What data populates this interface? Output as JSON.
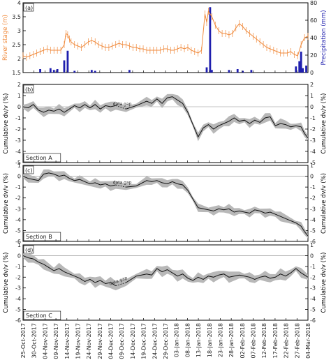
{
  "chart_data": [
    {
      "type": "line",
      "panel_label": "(a)",
      "ylabel_left": "River stage (m)",
      "ylabel_right": "Precipitation (mm)",
      "ylim_left": [
        1.5,
        4.0
      ],
      "ylim_right": [
        0,
        80
      ],
      "yticks_left": [
        "1.5",
        "2",
        "2.5",
        "3",
        "3.5",
        "4"
      ],
      "yticks_right": [
        "0",
        "20",
        "40",
        "60",
        "80"
      ],
      "colors": {
        "river_stage": "#f08a3c",
        "precipitation": "#1f1fae"
      },
      "series": [
        {
          "name": "River stage",
          "axis": "left",
          "kind": "line_errorbar",
          "x": [
            0,
            2,
            4,
            6,
            8,
            10,
            12,
            14,
            16,
            18,
            20,
            22,
            24,
            25,
            26,
            27,
            28,
            30,
            32,
            34,
            36,
            38,
            40,
            42,
            44,
            46,
            48,
            50,
            52,
            54,
            56,
            58,
            60,
            62,
            64,
            66,
            68,
            70,
            72,
            74,
            76,
            78,
            80,
            82,
            84,
            86,
            88,
            90,
            92,
            94,
            96,
            98,
            100,
            102,
            104,
            106,
            107,
            108,
            110,
            112,
            114,
            116,
            118,
            120,
            122,
            124,
            126,
            128,
            130,
            132,
            134,
            136,
            138,
            140,
            142,
            144,
            146,
            148,
            150,
            152,
            154,
            156,
            158,
            160,
            162,
            164,
            166
          ],
          "values": [
            2.1,
            2.05,
            2.1,
            2.15,
            2.2,
            2.25,
            2.3,
            2.35,
            2.3,
            2.3,
            2.3,
            2.3,
            2.5,
            2.9,
            2.85,
            2.7,
            2.6,
            2.5,
            2.45,
            2.4,
            2.5,
            2.6,
            2.65,
            2.6,
            2.5,
            2.45,
            2.4,
            2.4,
            2.45,
            2.5,
            2.55,
            2.5,
            2.5,
            2.45,
            2.4,
            2.4,
            2.35,
            2.35,
            2.3,
            2.3,
            2.3,
            2.3,
            2.3,
            2.35,
            2.35,
            2.3,
            2.3,
            2.35,
            2.4,
            2.35,
            2.4,
            2.3,
            2.25,
            2.2,
            2.3,
            3.6,
            3.3,
            3.7,
            3.5,
            3.2,
            3.0,
            2.9,
            2.9,
            2.85,
            2.9,
            3.1,
            3.25,
            3.15,
            3.0,
            2.9,
            2.8,
            2.7,
            2.6,
            2.5,
            2.4,
            2.35,
            2.3,
            2.25,
            2.2,
            2.2,
            2.2,
            2.25,
            2.15,
            2.1,
            2.5,
            2.75,
            2.8
          ]
        },
        {
          "name": "Precipitation",
          "axis": "right",
          "kind": "bar",
          "x": [
            10,
            16,
            18,
            20,
            24,
            26,
            30,
            40,
            42,
            62,
            107,
            109,
            110,
            120,
            125,
            128,
            133,
            159,
            161,
            162,
            163,
            165
          ],
          "values": [
            4,
            5,
            3,
            4,
            14,
            25,
            2,
            3,
            2,
            3,
            6,
            75,
            3,
            3,
            4,
            2,
            3,
            7,
            13,
            24,
            5,
            8
          ]
        }
      ]
    },
    {
      "type": "area",
      "panel_label": "(b)",
      "section_label": "Section A",
      "ylabel_left": "Cumulative dv/v (%)",
      "ylabel_right": "Cumulative dv/v (%)",
      "ylim": [
        -5,
        2
      ],
      "yticks": [
        "2",
        "1",
        "0",
        "-1",
        "-2",
        "-3",
        "-4",
        "-5"
      ],
      "annotation": "data gap",
      "series": [
        {
          "name": "dv/v",
          "kind": "line_with_band",
          "x": [
            0,
            3,
            6,
            9,
            12,
            15,
            18,
            21,
            24,
            27,
            30,
            33,
            36,
            39,
            42,
            45,
            48,
            51,
            54,
            60,
            66,
            72,
            75,
            78,
            81,
            84,
            87,
            90,
            93,
            96,
            99,
            102,
            105,
            108,
            111,
            114,
            117,
            120,
            123,
            126,
            129,
            132,
            135,
            138,
            141,
            144,
            147,
            150,
            153,
            156,
            159,
            162,
            164,
            166
          ],
          "values": [
            0,
            -0.1,
            0.2,
            -0.3,
            -0.5,
            -0.3,
            -0.4,
            -0.2,
            -0.5,
            -0.2,
            0.1,
            -0.1,
            0.2,
            -0.1,
            0.2,
            -0.2,
            0.1,
            0.0,
            0.1,
            -0.2,
            0.1,
            0.5,
            0.3,
            0.7,
            0.3,
            0.8,
            0.9,
            0.6,
            0.3,
            -0.5,
            -1.6,
            -2.7,
            -1.9,
            -1.6,
            -2.0,
            -1.7,
            -1.5,
            -1.3,
            -1.0,
            -1.3,
            -1.2,
            -1.5,
            -1.2,
            -1.4,
            -1.0,
            -0.9,
            -1.7,
            -1.5,
            -1.6,
            -1.8,
            -1.7,
            -1.8,
            -2.4,
            -2.8
          ],
          "band_halfwidth": 0.3
        }
      ]
    },
    {
      "type": "area",
      "panel_label": "(c)",
      "section_label": "Section B",
      "ylabel_left": "Cumulative dv/v (%)",
      "ylabel_right": "Cumulative dv/v (%)",
      "ylim": [
        -6,
        1
      ],
      "yticks": [
        "1",
        "0",
        "-1",
        "-2",
        "-3",
        "-4",
        "-5",
        "-6"
      ],
      "annotation": "data gap",
      "series": [
        {
          "name": "dv/v",
          "kind": "line_with_band",
          "x": [
            0,
            3,
            6,
            9,
            12,
            15,
            18,
            21,
            24,
            27,
            30,
            33,
            36,
            39,
            42,
            45,
            48,
            51,
            54,
            60,
            66,
            72,
            75,
            78,
            81,
            84,
            87,
            90,
            93,
            96,
            99,
            102,
            105,
            108,
            111,
            114,
            117,
            120,
            123,
            126,
            129,
            132,
            135,
            138,
            141,
            144,
            147,
            150,
            153,
            156,
            159,
            162,
            164,
            166
          ],
          "values": [
            0,
            -0.2,
            -0.3,
            -0.4,
            0.2,
            0.3,
            0.2,
            0.0,
            0.1,
            -0.2,
            -0.4,
            -0.3,
            -0.5,
            -0.7,
            -0.6,
            -0.8,
            -0.7,
            -0.9,
            -0.8,
            -1.0,
            -0.9,
            -0.4,
            -0.5,
            -0.4,
            -0.6,
            -0.7,
            -0.5,
            -0.7,
            -0.8,
            -1.3,
            -2.1,
            -2.9,
            -3.0,
            -3.1,
            -3.2,
            -3.0,
            -3.1,
            -3.0,
            -3.3,
            -3.2,
            -3.3,
            -3.4,
            -3.1,
            -3.2,
            -3.4,
            -3.3,
            -3.5,
            -3.7,
            -3.9,
            -4.1,
            -4.3,
            -4.6,
            -5.1,
            -5.5
          ],
          "band_halfwidth": 0.3
        }
      ]
    },
    {
      "type": "area",
      "panel_label": "(d)",
      "section_label": "Section C",
      "ylabel_left": "Cumulative dv/v (%)",
      "ylabel_right": "Cumulative dv/v (%)",
      "ylim": [
        -6,
        1
      ],
      "yticks": [
        "1",
        "0",
        "-1",
        "-2",
        "-3",
        "-4",
        "-5",
        "-6"
      ],
      "annotation": "data gap",
      "xticks": [
        "25-Oct-2017",
        "30-Oct-2017",
        "04-Nov-2017",
        "09-Nov-2017",
        "14-Nov-2017",
        "19-Nov-2017",
        "24-Nov-2017",
        "29-Nov-2017",
        "04-Dec-2017",
        "09-Dec-2017",
        "14-Dec-2017",
        "19-Dec-2017",
        "24-Dec-2017",
        "29-Dec-2017",
        "03-Jan-2018",
        "08-Jan-2018",
        "13-Jan-2018",
        "18-Jan-2018",
        "23-Jan-2018",
        "28-Jan-2018",
        "02-Feb-2018",
        "07-Feb-2018",
        "12-Feb-2018",
        "17-Feb-2018",
        "22-Feb-2018",
        "27-Feb-2018",
        "04-Mar-2018"
      ],
      "series": [
        {
          "name": "dv/v",
          "kind": "line_with_band",
          "x": [
            0,
            3,
            6,
            9,
            12,
            15,
            18,
            21,
            24,
            27,
            30,
            33,
            36,
            39,
            42,
            45,
            48,
            51,
            54,
            60,
            66,
            72,
            75,
            78,
            81,
            84,
            87,
            90,
            93,
            96,
            99,
            102,
            105,
            108,
            111,
            114,
            117,
            120,
            123,
            126,
            129,
            132,
            135,
            138,
            141,
            144,
            147,
            150,
            153,
            156,
            159,
            162,
            164,
            166
          ],
          "values": [
            0,
            -0.2,
            -0.3,
            -0.6,
            -0.8,
            -1.1,
            -1.4,
            -1.2,
            -1.5,
            -1.7,
            -1.9,
            -2.1,
            -2.4,
            -2.2,
            -2.5,
            -2.3,
            -2.6,
            -2.5,
            -2.8,
            -2.5,
            -1.9,
            -1.7,
            -1.8,
            -1.2,
            -1.5,
            -1.3,
            -1.6,
            -1.9,
            -1.7,
            -2.1,
            -2.3,
            -2.0,
            -2.2,
            -1.9,
            -2.0,
            -1.8,
            -1.7,
            -2.0,
            -1.9,
            -1.8,
            -1.9,
            -2.0,
            -2.2,
            -2.0,
            -1.9,
            -2.1,
            -2.0,
            -1.7,
            -1.9,
            -1.6,
            -1.2,
            -1.6,
            -1.8,
            -2.0
          ],
          "band_halfwidth": 0.35
        }
      ]
    }
  ]
}
